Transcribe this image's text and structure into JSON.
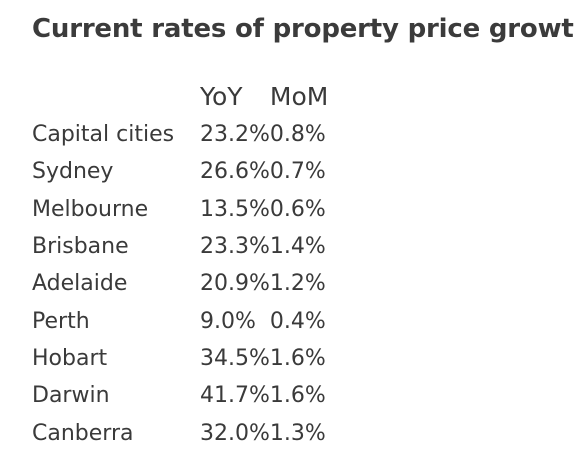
{
  "title": "Current rates of property price growth",
  "table": {
    "headers": [
      "",
      "YoY",
      "MoM"
    ],
    "rows": [
      {
        "city": "Capital cities",
        "yoy": "23.2%",
        "mom": "0.8%"
      },
      {
        "city": "Sydney",
        "yoy": "26.6%",
        "mom": "0.7%"
      },
      {
        "city": "Melbourne",
        "yoy": "13.5%",
        "mom": "0.6%"
      },
      {
        "city": "Brisbane",
        "yoy": "23.3%",
        "mom": "1.4%"
      },
      {
        "city": "Adelaide",
        "yoy": "20.9%",
        "mom": "1.2%"
      },
      {
        "city": "Perth",
        "yoy": "9.0%",
        "mom": "0.4%"
      },
      {
        "city": "Hobart",
        "yoy": "34.5%",
        "mom": "1.6%"
      },
      {
        "city": "Darwin",
        "yoy": "41.7%",
        "mom": "1.6%"
      },
      {
        "city": "Canberra",
        "yoy": "32.0%",
        "mom": "1.3%"
      }
    ]
  }
}
